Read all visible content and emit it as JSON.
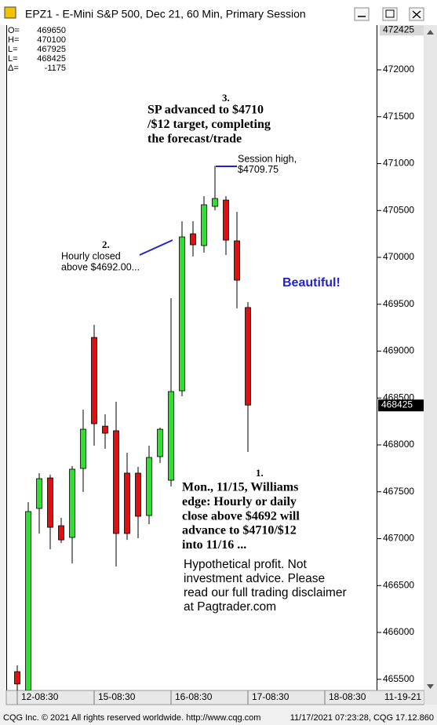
{
  "chart_data": {
    "type": "candlestick",
    "title": "EPZ1 - E-Mini S&P 500, Dec 21, 60 Min, Primary Session",
    "ohlc_box": {
      "labels": [
        "O=",
        "H=",
        "L=",
        "L=",
        "Δ="
      ],
      "values": [
        469650,
        470100,
        467925,
        468425,
        -1175
      ]
    },
    "open": [
      465582,
      465380,
      467322,
      467648,
      467138,
      467013,
      467749,
      469146,
      468200,
      468151,
      467699,
      467699,
      467247,
      467875,
      467623,
      468577,
      470251,
      470126,
      470544,
      470611,
      470176,
      469465
    ],
    "high": [
      465650,
      467389,
      467699,
      467682,
      467222,
      467774,
      468376,
      469280,
      468326,
      468460,
      467917,
      467766,
      467992,
      468184,
      469565,
      470385,
      470385,
      470653,
      470975,
      470653,
      470485,
      469523
    ],
    "low": [
      465300,
      465300,
      467054,
      466886,
      466953,
      466736,
      467498,
      467992,
      467958,
      466703,
      466987,
      467004,
      467155,
      467807,
      467557,
      468519,
      470009,
      470050,
      470502,
      470025,
      469456,
      467925
    ],
    "close": [
      465450,
      467289,
      467640,
      467121,
      466987,
      467741,
      468167,
      468226,
      468125,
      467055,
      467055,
      467239,
      467866,
      468167,
      468569,
      470218,
      470134,
      470561,
      470628,
      470184,
      469757,
      468425
    ],
    "up_color": "#33dd33",
    "down_color": "#dd1111",
    "xlim": [
      -1,
      32.5
    ],
    "xticks": [
      {
        "value": 0,
        "label": "12-08:30"
      },
      {
        "value": 7,
        "label": "15-08:30"
      },
      {
        "value": 14,
        "label": "16-08:30"
      },
      {
        "value": 21,
        "label": "17-08:30"
      },
      {
        "value": 28,
        "label": "18-08:30"
      }
    ],
    "date_label": "11-19-21",
    "ylim": [
      465381,
      472477
    ],
    "yticks": [
      465500,
      466000,
      466500,
      467000,
      467500,
      468000,
      468500,
      469000,
      469500,
      470000,
      470500,
      471000,
      471500,
      472000
    ],
    "top_price": 472425,
    "last_price": 468425,
    "annotations": {
      "target": {
        "number": "3.",
        "lines": [
          "SP advanced to $4710",
          "/$12 target, completing",
          "the forecast/trade"
        ]
      },
      "session_high": {
        "lines": [
          "Session high,",
          "$4709.75"
        ]
      },
      "hourly": {
        "number": "2.",
        "lines": [
          "Hourly closed",
          "above $4692.00..."
        ]
      },
      "beautiful": "Beautiful!",
      "forecast": {
        "number": "1.",
        "lines": [
          "Mon., 11/15, Williams",
          "edge: Hourly or daily",
          "close above $4692 will",
          "advance to $4710/$12",
          "into 11/16 ..."
        ]
      },
      "disclaimer": {
        "lines": [
          "Hypothetical profit. Not",
          "investment advice. Please",
          "read our full trading disclaimer",
          "at Pagtrader.com"
        ]
      }
    },
    "footer_left": "CQG Inc. © 2021 All rights reserved worldwide. http://www.cqg.com",
    "footer_right": "11/17/2021 07:23:28, CQG 17.12.860"
  }
}
